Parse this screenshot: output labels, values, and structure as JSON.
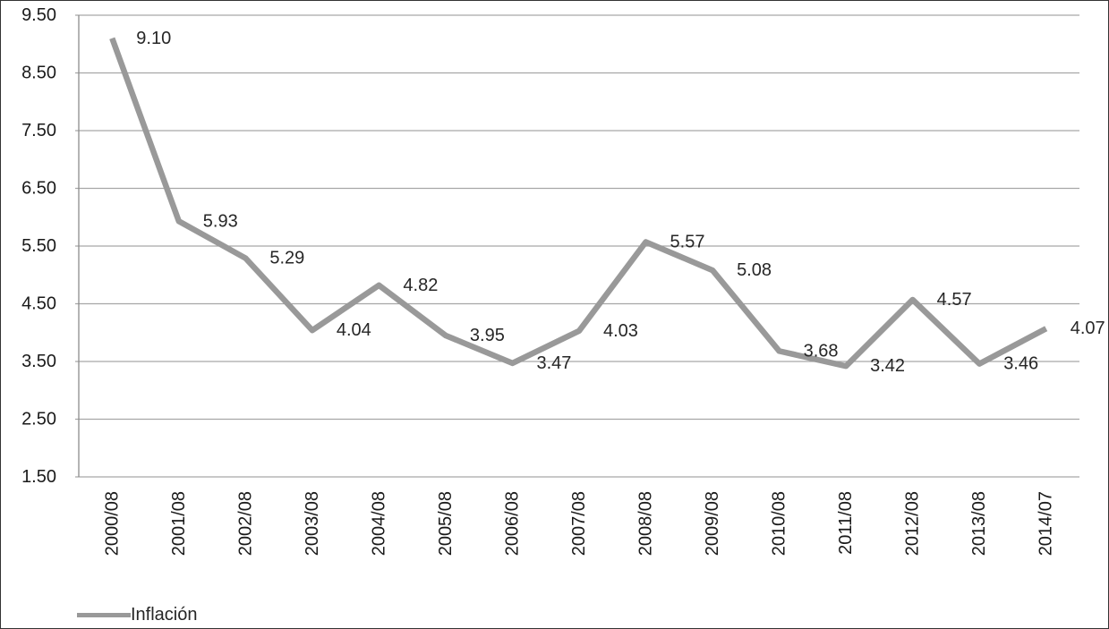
{
  "chart_data": {
    "type": "line",
    "title": "",
    "xlabel": "",
    "ylabel": "",
    "categories": [
      "2000/08",
      "2001/08",
      "2002/08",
      "2003/08",
      "2004/08",
      "2005/08",
      "2006/08",
      "2007/08",
      "2008/08",
      "2009/08",
      "2010/08",
      "2011/08",
      "2012/08",
      "2013/08",
      "2014/07"
    ],
    "series": [
      {
        "name": "Inflación",
        "values": [
          9.1,
          5.93,
          5.29,
          4.04,
          4.82,
          3.95,
          3.47,
          4.03,
          5.57,
          5.08,
          3.68,
          3.42,
          4.57,
          3.46,
          4.07
        ],
        "data_labels": [
          "9.10",
          "5.93",
          "5.29",
          "4.04",
          "4.82",
          "3.95",
          "3.47",
          "4.03",
          "5.57",
          "5.08",
          "3.68",
          "3.42",
          "4.57",
          "3.46",
          "4.07"
        ]
      }
    ],
    "ylim": [
      1.5,
      9.5
    ],
    "ytick_step": 1.0,
    "ytick_labels": [
      "9.50",
      "8.50",
      "7.50",
      "6.50",
      "5.50",
      "4.50",
      "3.50",
      "2.50",
      "1.50"
    ],
    "grid": true,
    "legend_position": "bottom-left",
    "colors": {
      "series_line": "#999999",
      "gridline": "#a6a6a6",
      "axis_line": "#8c8c8c",
      "data_label_text": "#262626",
      "tick_label_text": "#1a1a1a",
      "background": "#ffffff",
      "frame_border": "#333333"
    }
  },
  "legend": {
    "label": "Inflación"
  }
}
